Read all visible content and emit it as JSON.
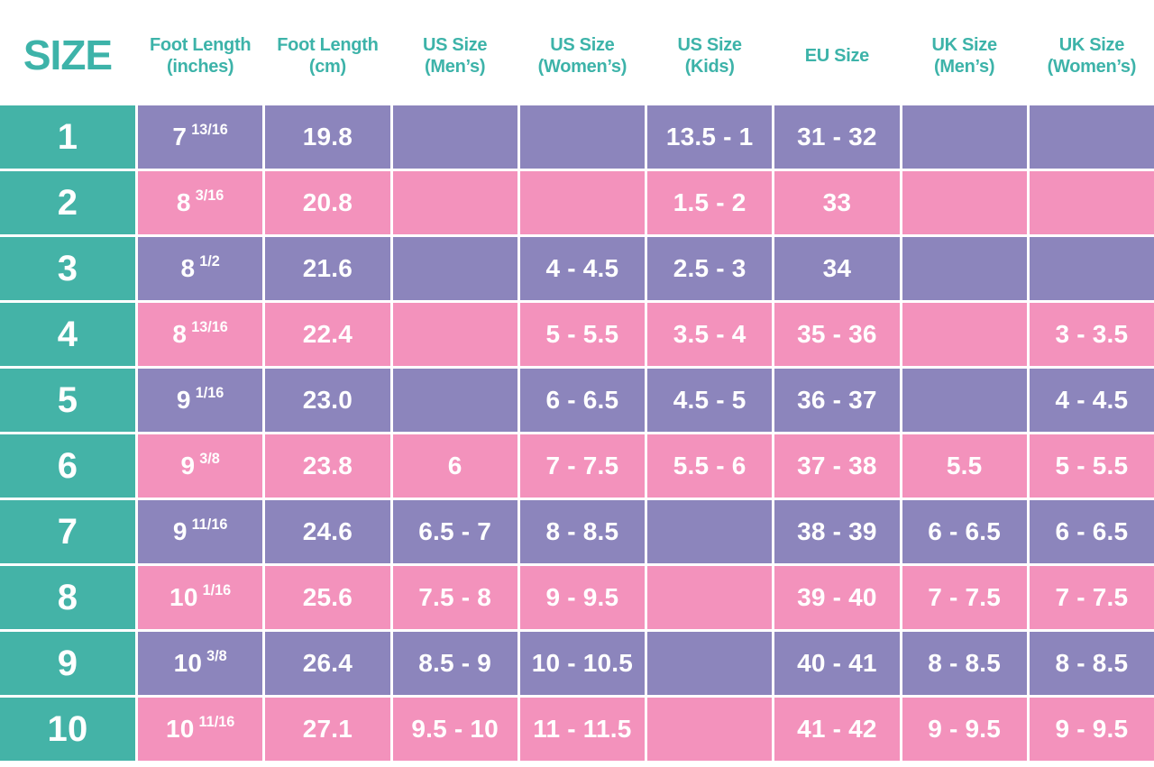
{
  "colors": {
    "teal": "#44b3a7",
    "purple": "#8c85bc",
    "pink": "#f392bc",
    "header_text": "#3db3a9",
    "cell_text": "#ffffff",
    "divider": "#ffffff"
  },
  "chart_data": {
    "type": "table",
    "headers": [
      {
        "label": "SIZE",
        "sub": ""
      },
      {
        "label": "Foot Length",
        "sub": "(inches)"
      },
      {
        "label": "Foot Length",
        "sub": "(cm)"
      },
      {
        "label": "US Size",
        "sub": "(Men’s)"
      },
      {
        "label": "US Size",
        "sub": "(Women’s)"
      },
      {
        "label": "US Size",
        "sub": "(Kids)"
      },
      {
        "label": "EU Size",
        "sub": ""
      },
      {
        "label": "UK Size",
        "sub": "(Men’s)"
      },
      {
        "label": "UK Size",
        "sub": "(Women’s)"
      }
    ],
    "rows": [
      {
        "size": "1",
        "inches_whole": "7",
        "inches_frac": "13/16",
        "cm": "19.8",
        "us_mens": "",
        "us_womens": "",
        "us_kids": "13.5 - 1",
        "eu": "31 - 32",
        "uk_mens": "",
        "uk_womens": ""
      },
      {
        "size": "2",
        "inches_whole": "8",
        "inches_frac": "3/16",
        "cm": "20.8",
        "us_mens": "",
        "us_womens": "",
        "us_kids": "1.5 - 2",
        "eu": "33",
        "uk_mens": "",
        "uk_womens": ""
      },
      {
        "size": "3",
        "inches_whole": "8",
        "inches_frac": "1/2",
        "cm": "21.6",
        "us_mens": "",
        "us_womens": "4 - 4.5",
        "us_kids": "2.5 - 3",
        "eu": "34",
        "uk_mens": "",
        "uk_womens": ""
      },
      {
        "size": "4",
        "inches_whole": "8",
        "inches_frac": "13/16",
        "cm": "22.4",
        "us_mens": "",
        "us_womens": "5 - 5.5",
        "us_kids": "3.5 - 4",
        "eu": "35 - 36",
        "uk_mens": "",
        "uk_womens": "3 - 3.5"
      },
      {
        "size": "5",
        "inches_whole": "9",
        "inches_frac": "1/16",
        "cm": "23.0",
        "us_mens": "",
        "us_womens": "6 - 6.5",
        "us_kids": "4.5 - 5",
        "eu": "36 - 37",
        "uk_mens": "",
        "uk_womens": "4 - 4.5"
      },
      {
        "size": "6",
        "inches_whole": "9",
        "inches_frac": "3/8",
        "cm": "23.8",
        "us_mens": "6",
        "us_womens": "7 - 7.5",
        "us_kids": "5.5 - 6",
        "eu": "37 - 38",
        "uk_mens": "5.5",
        "uk_womens": "5 - 5.5"
      },
      {
        "size": "7",
        "inches_whole": "9",
        "inches_frac": "11/16",
        "cm": "24.6",
        "us_mens": "6.5 - 7",
        "us_womens": "8 - 8.5",
        "us_kids": "",
        "eu": "38 - 39",
        "uk_mens": "6 - 6.5",
        "uk_womens": "6 - 6.5"
      },
      {
        "size": "8",
        "inches_whole": "10",
        "inches_frac": "1/16",
        "cm": "25.6",
        "us_mens": "7.5 - 8",
        "us_womens": "9 - 9.5",
        "us_kids": "",
        "eu": "39 - 40",
        "uk_mens": "7 - 7.5",
        "uk_womens": "7 - 7.5"
      },
      {
        "size": "9",
        "inches_whole": "10",
        "inches_frac": "3/8",
        "cm": "26.4",
        "us_mens": "8.5 - 9",
        "us_womens": "10 - 10.5",
        "us_kids": "",
        "eu": "40 - 41",
        "uk_mens": "8 - 8.5",
        "uk_womens": "8 - 8.5"
      },
      {
        "size": "10",
        "inches_whole": "10",
        "inches_frac": "11/16",
        "cm": "27.1",
        "us_mens": "9.5 - 10",
        "us_womens": "11 - 11.5",
        "us_kids": "",
        "eu": "41 - 42",
        "uk_mens": "9 - 9.5",
        "uk_womens": "9 - 9.5"
      }
    ]
  }
}
